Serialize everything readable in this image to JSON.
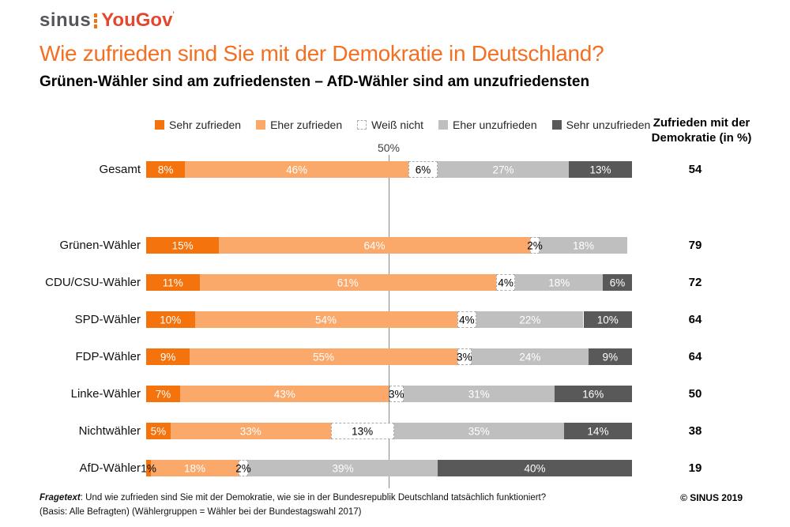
{
  "brand": {
    "sinus": "sinus",
    "yougov": "YouGov",
    "trademark": "’"
  },
  "title": "Wie zufrieden sind Sie mit der Demokratie in Deutschland?",
  "subtitle": "Grünen-Wähler sind am zufriedensten – AfD-Wähler sind am unzufriedensten",
  "right_header": {
    "line1": "Zufrieden mit der",
    "line2": "Demokratie (in %)"
  },
  "axis": {
    "reference_label": "50%"
  },
  "legend": [
    {
      "label": "Sehr zufrieden",
      "color": "#f4730d",
      "style": "solid"
    },
    {
      "label": "Eher zufrieden",
      "color": "#faa96b",
      "style": "solid"
    },
    {
      "label": "Weiß nicht",
      "color": "#ffffff",
      "style": "dashed"
    },
    {
      "label": "Eher unzufrieden",
      "color": "#bfbfbf",
      "style": "solid"
    },
    {
      "label": "Sehr unzufrieden",
      "color": "#595959",
      "style": "solid"
    }
  ],
  "chart_data": {
    "type": "bar",
    "subtype": "horizontal-stacked-100",
    "title": "Wie zufrieden sind Sie mit der Demokratie in Deutschland?",
    "xlim": [
      0,
      100
    ],
    "reference_line": 50,
    "categories": [
      "Gesamt",
      "Grünen-Wähler",
      "CDU/CSU-Wähler",
      "SPD-Wähler",
      "FDP-Wähler",
      "Linke-Wähler",
      "Nichtwähler",
      "AfD-Wähler"
    ],
    "series": [
      {
        "name": "Sehr zufrieden",
        "color": "#f4730d",
        "values": [
          8,
          15,
          11,
          10,
          9,
          7,
          5,
          1
        ]
      },
      {
        "name": "Eher zufrieden",
        "color": "#faa96b",
        "values": [
          46,
          64,
          61,
          54,
          55,
          43,
          33,
          18
        ]
      },
      {
        "name": "Weiß nicht",
        "color": "#ffffff",
        "values": [
          6,
          2,
          4,
          4,
          3,
          3,
          13,
          2
        ]
      },
      {
        "name": "Eher unzufrieden",
        "color": "#bfbfbf",
        "values": [
          27,
          18,
          18,
          22,
          24,
          31,
          35,
          39
        ]
      },
      {
        "name": "Sehr unzufrieden",
        "color": "#595959",
        "values": [
          13,
          0,
          6,
          10,
          9,
          16,
          14,
          40
        ]
      }
    ],
    "totals_label": "Zufrieden mit der Demokratie (in %)",
    "totals_satisfied": [
      54,
      79,
      72,
      64,
      64,
      50,
      38,
      19
    ]
  },
  "footer": {
    "line1_prefix": "Fragetext",
    "line1_rest": ": Und wie zufrieden sind Sie mit der Demokratie, wie sie in der Bundesrepublik Deutschland tatsächlich funktioniert?",
    "line2": "(Basis: Alle Befragten) (Wählergruppen = Wähler bei der Bundestagswahl 2017)",
    "copyright": "© SINUS 2019"
  }
}
